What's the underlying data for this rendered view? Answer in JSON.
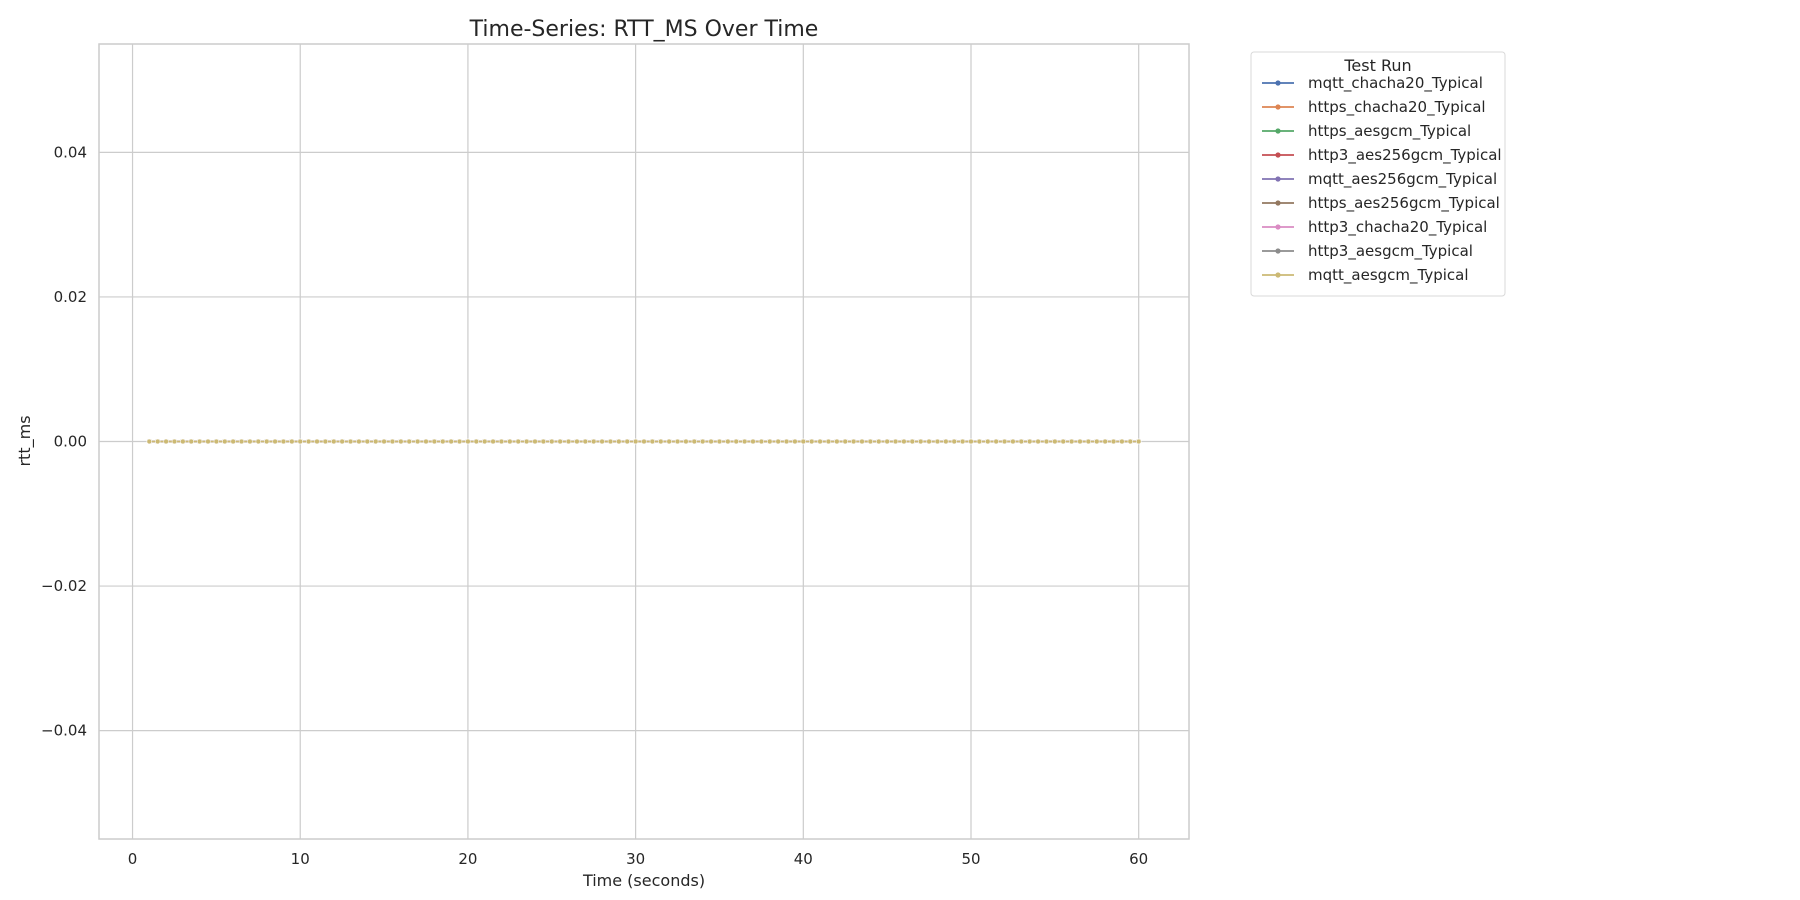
{
  "chart_data": {
    "type": "line",
    "title": "Time-Series: RTT_MS Over Time",
    "xlabel": "Time (seconds)",
    "ylabel": "rtt_ms",
    "xlim": [
      -2,
      63
    ],
    "ylim": [
      -0.055,
      0.055
    ],
    "x_ticks": [
      0,
      10,
      20,
      30,
      40,
      50,
      60
    ],
    "x_tick_labels": [
      "0",
      "10",
      "20",
      "30",
      "40",
      "50",
      "60"
    ],
    "y_ticks": [
      -0.04,
      -0.02,
      0.0,
      0.02,
      0.04
    ],
    "y_tick_labels": [
      "−0.04",
      "−0.02",
      "0.00",
      "0.02",
      "0.04"
    ],
    "grid": true,
    "legend": {
      "title": "Test Run",
      "placement": "outside-upper-right"
    },
    "x": [
      1,
      1.5,
      2,
      2.5,
      3,
      3.5,
      4,
      4.5,
      5,
      5.5,
      6,
      6.5,
      7,
      7.5,
      8,
      8.5,
      9,
      9.5,
      10,
      10.5,
      11,
      11.5,
      12,
      12.5,
      13,
      13.5,
      14,
      14.5,
      15,
      15.5,
      16,
      16.5,
      17,
      17.5,
      18,
      18.5,
      19,
      19.5,
      20,
      20.5,
      21,
      21.5,
      22,
      22.5,
      23,
      23.5,
      24,
      24.5,
      25,
      25.5,
      26,
      26.5,
      27,
      27.5,
      28,
      28.5,
      29,
      29.5,
      30,
      30.5,
      31,
      31.5,
      32,
      32.5,
      33,
      33.5,
      34,
      34.5,
      35,
      35.5,
      36,
      36.5,
      37,
      37.5,
      38,
      38.5,
      39,
      39.5,
      40,
      40.5,
      41,
      41.5,
      42,
      42.5,
      43,
      43.5,
      44,
      44.5,
      45,
      45.5,
      46,
      46.5,
      47,
      47.5,
      48,
      48.5,
      49,
      49.5,
      50,
      50.5,
      51,
      51.5,
      52,
      52.5,
      53,
      53.5,
      54,
      54.5,
      55,
      55.5,
      56,
      56.5,
      57,
      57.5,
      58,
      58.5,
      59,
      59.5,
      60
    ],
    "series": [
      {
        "name": "mqtt_chacha20_Typical",
        "color": "#4c72b0",
        "value": 0.0
      },
      {
        "name": "https_chacha20_Typical",
        "color": "#dd8452",
        "value": 0.0
      },
      {
        "name": "https_aesgcm_Typical",
        "color": "#55a868",
        "value": 0.0
      },
      {
        "name": "http3_aes256gcm_Typical",
        "color": "#c44e52",
        "value": 0.0
      },
      {
        "name": "mqtt_aes256gcm_Typical",
        "color": "#8172b3",
        "value": 0.0
      },
      {
        "name": "https_aes256gcm_Typical",
        "color": "#937860",
        "value": 0.0
      },
      {
        "name": "http3_chacha20_Typical",
        "color": "#da8bc3",
        "value": 0.0
      },
      {
        "name": "http3_aesgcm_Typical",
        "color": "#8c8c8c",
        "value": 0.0
      },
      {
        "name": "mqtt_aesgcm_Typical",
        "color": "#ccb974",
        "value": 0.0
      }
    ]
  }
}
